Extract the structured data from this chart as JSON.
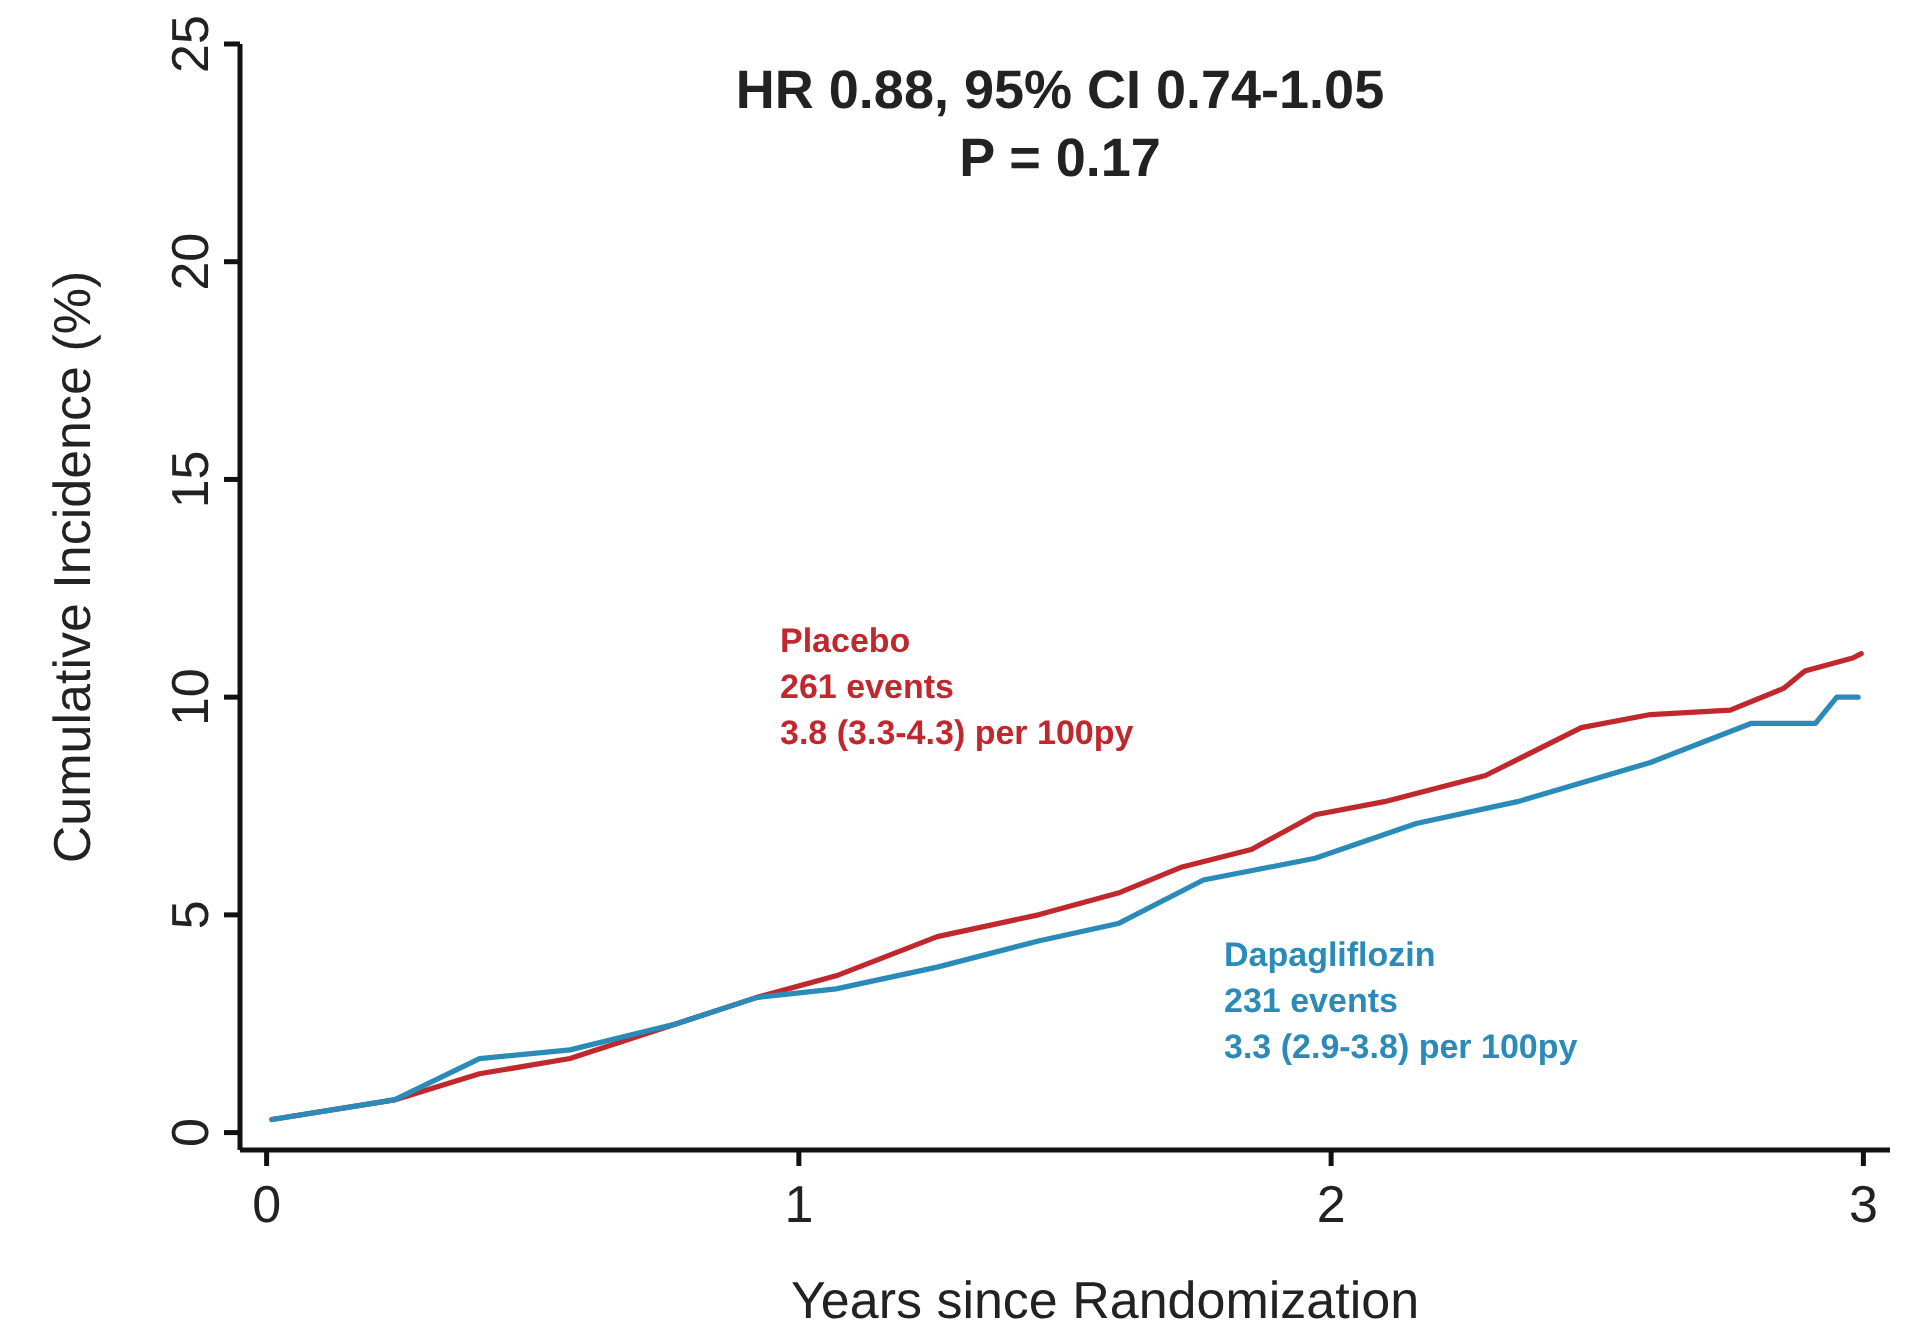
{
  "chart_data": {
    "type": "line",
    "xlabel": "Years since Randomization",
    "ylabel": "Cumulative Incidence (%)",
    "xlim": [
      -0.05,
      3.05
    ],
    "ylim": [
      -0.4,
      25
    ],
    "xticks": [
      0,
      1,
      2,
      3
    ],
    "yticks": [
      0,
      5,
      10,
      15,
      20,
      25
    ],
    "grid": false,
    "marker": "none",
    "line_style": "solid",
    "annotations": [
      "HR 0.88, 95% CI 0.74-1.05",
      "P = 0.17",
      "261 events",
      "3.8 (3.3-4.3) per 100py",
      "231 events",
      "3.3 (2.9-3.8) per 100py"
    ],
    "series": [
      {
        "name": "Placebo",
        "color": "#c0282d",
        "x": [
          0.01,
          0.24,
          0.4,
          0.57,
          0.77,
          0.92,
          1.07,
          1.26,
          1.45,
          1.6,
          1.72,
          1.85,
          1.97,
          2.1,
          2.29,
          2.47,
          2.6,
          2.75,
          2.85,
          2.89,
          2.98,
          2.996
        ],
        "values": [
          0.3,
          0.75,
          1.35,
          1.7,
          2.5,
          3.1,
          3.6,
          4.5,
          5.0,
          5.5,
          6.1,
          6.5,
          7.3,
          7.6,
          8.2,
          9.3,
          9.6,
          9.7,
          10.2,
          10.6,
          10.9,
          11.0
        ]
      },
      {
        "name": "Dapagliflozin",
        "color": "#2a8ab8",
        "x": [
          0.01,
          0.24,
          0.4,
          0.57,
          0.77,
          0.92,
          1.07,
          1.26,
          1.45,
          1.6,
          1.76,
          1.97,
          2.16,
          2.35,
          2.6,
          2.79,
          2.91,
          2.95,
          2.99
        ],
        "values": [
          0.3,
          0.75,
          1.7,
          1.9,
          2.5,
          3.1,
          3.3,
          3.8,
          4.4,
          4.8,
          5.8,
          6.3,
          7.1,
          7.6,
          8.5,
          9.4,
          9.4,
          10.0,
          10.0
        ]
      }
    ]
  }
}
